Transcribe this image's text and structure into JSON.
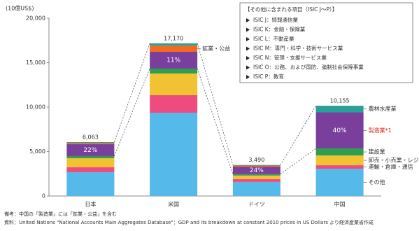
{
  "chart_data": {
    "type": "stacked_bar",
    "y_label": "(10億US$)",
    "categories": [
      "日本",
      "米国",
      "ドイツ",
      "中国"
    ],
    "ylim": [
      0,
      20000
    ],
    "yticks": [
      {
        "value": 0,
        "label": "0"
      },
      {
        "value": 5000,
        "label": "5,000"
      },
      {
        "value": 10000,
        "label": "10,000"
      },
      {
        "value": 15000,
        "label": "15,000"
      },
      {
        "value": 20000,
        "label": "20,000"
      }
    ],
    "grid": false,
    "series": [
      {
        "name": "その他",
        "color": "#55b9e9",
        "values": [
          2680,
          9370,
          1580,
          3070
        ]
      },
      {
        "name": "運輸・倉庫・通信",
        "color": "#ee4c7f",
        "values": [
          550,
          1970,
          320,
          390
        ]
      },
      {
        "name": "卸売・小売業・レジャー",
        "color": "#f1c232",
        "values": [
          1020,
          2440,
          400,
          1100
        ]
      },
      {
        "name": "建設業",
        "color": "#2e9e4f",
        "values": [
          240,
          550,
          160,
          790
        ]
      },
      {
        "name": "製造業*1",
        "color": "#7a3e9d",
        "values": [
          1334,
          1889,
          838,
          4062
        ]
      },
      {
        "name": "鉱業・公益",
        "color": "#f26b21",
        "values": [
          150,
          700,
          130,
          0
        ]
      },
      {
        "name": "農林水産業",
        "color": "#2aa198",
        "values": [
          89,
          251,
          62,
          743
        ]
      }
    ],
    "totals": {
      "values": [
        6063,
        17170,
        3490,
        10155
      ],
      "value_labels": [
        "6,063",
        "17,170",
        "3,490",
        "10,155"
      ]
    },
    "shares": {
      "values": [
        22,
        11,
        24,
        40
      ],
      "value_labels": [
        "22%",
        "11%",
        "24%",
        "40%"
      ]
    }
  },
  "info_box": {
    "title": "【その他に含まれる項目（ISIC J～P）】",
    "items": [
      "ISIC J：情報通信業",
      "ISIC K：金融・保険業",
      "ISIC L：不動産業",
      "ISIC M：専門・科学・技術サービス業",
      "ISIC N：管理・支援サービス業",
      "ISIC O：公務、および国防、強制社会保障事業",
      "ISIC P：教育"
    ]
  },
  "footer": {
    "note": "備考：中国の「製造業」には「鉱業・公益」を含む",
    "source": "資料：United Nations \"National Accounts Main Aggregates Database\"：GDP and its breakdown at constant 2010 prices in US Dollars より経済産業省作成"
  }
}
